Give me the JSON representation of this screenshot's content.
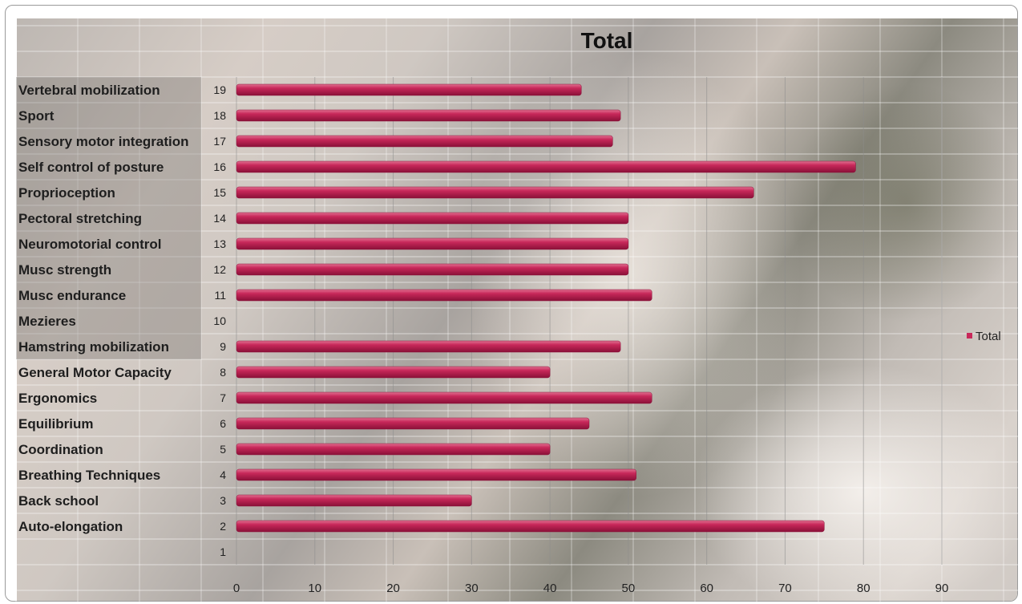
{
  "chart_data": {
    "type": "bar",
    "orientation": "horizontal",
    "title": "Total",
    "categories": [
      "1",
      "2",
      "3",
      "4",
      "5",
      "6",
      "7",
      "8",
      "9",
      "10",
      "11",
      "12",
      "13",
      "14",
      "15",
      "16",
      "17",
      "18",
      "19"
    ],
    "category_labels": [
      "",
      "Auto-elongation",
      "Back school",
      "Breathing Techniques",
      "Coordination",
      "Equilibrium",
      "Ergonomics",
      "General Motor Capacity",
      "Hamstring mobilization",
      "Mezieres",
      "Musc endurance",
      "Musc strength",
      "Neuromotorial control",
      "Pectoral stretching",
      "Proprioception",
      "Self control of posture",
      "Sensory motor integration",
      "Sport",
      "Vertebral mobilization"
    ],
    "series": [
      {
        "name": "Total",
        "values": [
          0,
          75,
          30,
          51,
          40,
          45,
          53,
          40,
          49,
          0,
          53,
          50,
          50,
          50,
          66,
          79,
          48,
          49,
          44
        ]
      }
    ],
    "xlim": [
      0,
      90
    ],
    "xticks": [
      0,
      10,
      20,
      30,
      40,
      50,
      60,
      70,
      80,
      90
    ],
    "grid": true,
    "legend_position": "right",
    "colors": {
      "bar": "#c8285a",
      "bar_highlight": "#e8789a",
      "bar_shadow": "#8a1038"
    }
  }
}
